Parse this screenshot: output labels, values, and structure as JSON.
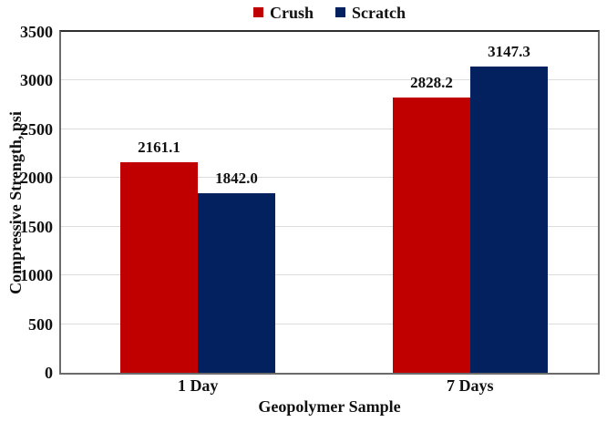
{
  "chart_data": {
    "type": "bar",
    "title": "",
    "categories": [
      "1 Day",
      "7 Days"
    ],
    "series": [
      {
        "name": "Crush",
        "color": "#c00000",
        "values": [
          2161.1,
          2828.2
        ]
      },
      {
        "name": "Scratch",
        "color": "#04215f",
        "values": [
          1842.0,
          3147.3
        ]
      }
    ],
    "value_labels": [
      [
        "2161.1",
        "2828.2"
      ],
      [
        "1842.0",
        "3147.3"
      ]
    ],
    "xlabel": "Geopolymer Sample",
    "ylabel": "Compressive Strength, psi",
    "ylim": [
      0,
      3500
    ],
    "ytick_step": 500,
    "yticks": [
      0,
      500,
      1000,
      1500,
      2000,
      2500,
      3000,
      3500
    ],
    "grid": true,
    "legend_position": "top",
    "colors": {
      "crush": "#c00000",
      "scratch": "#04215f",
      "gridline": "#dcdcdc",
      "axis_line": "#6b6b6b",
      "text": "#111111"
    }
  }
}
